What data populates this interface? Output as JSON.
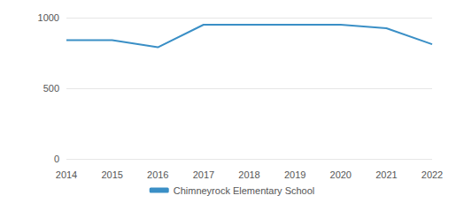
{
  "chart_data": {
    "type": "line",
    "categories": [
      "2014",
      "2015",
      "2016",
      "2017",
      "2018",
      "2019",
      "2020",
      "2021",
      "2022"
    ],
    "series": [
      {
        "name": "Chimneyrock Elementary School",
        "color": "#3a8fc6",
        "values": [
          840,
          840,
          790,
          950,
          950,
          950,
          950,
          925,
          812
        ]
      }
    ],
    "ylim": [
      0,
      1000
    ],
    "yticks": [
      0,
      500,
      1000
    ],
    "grid": true,
    "legend": "bottom"
  }
}
